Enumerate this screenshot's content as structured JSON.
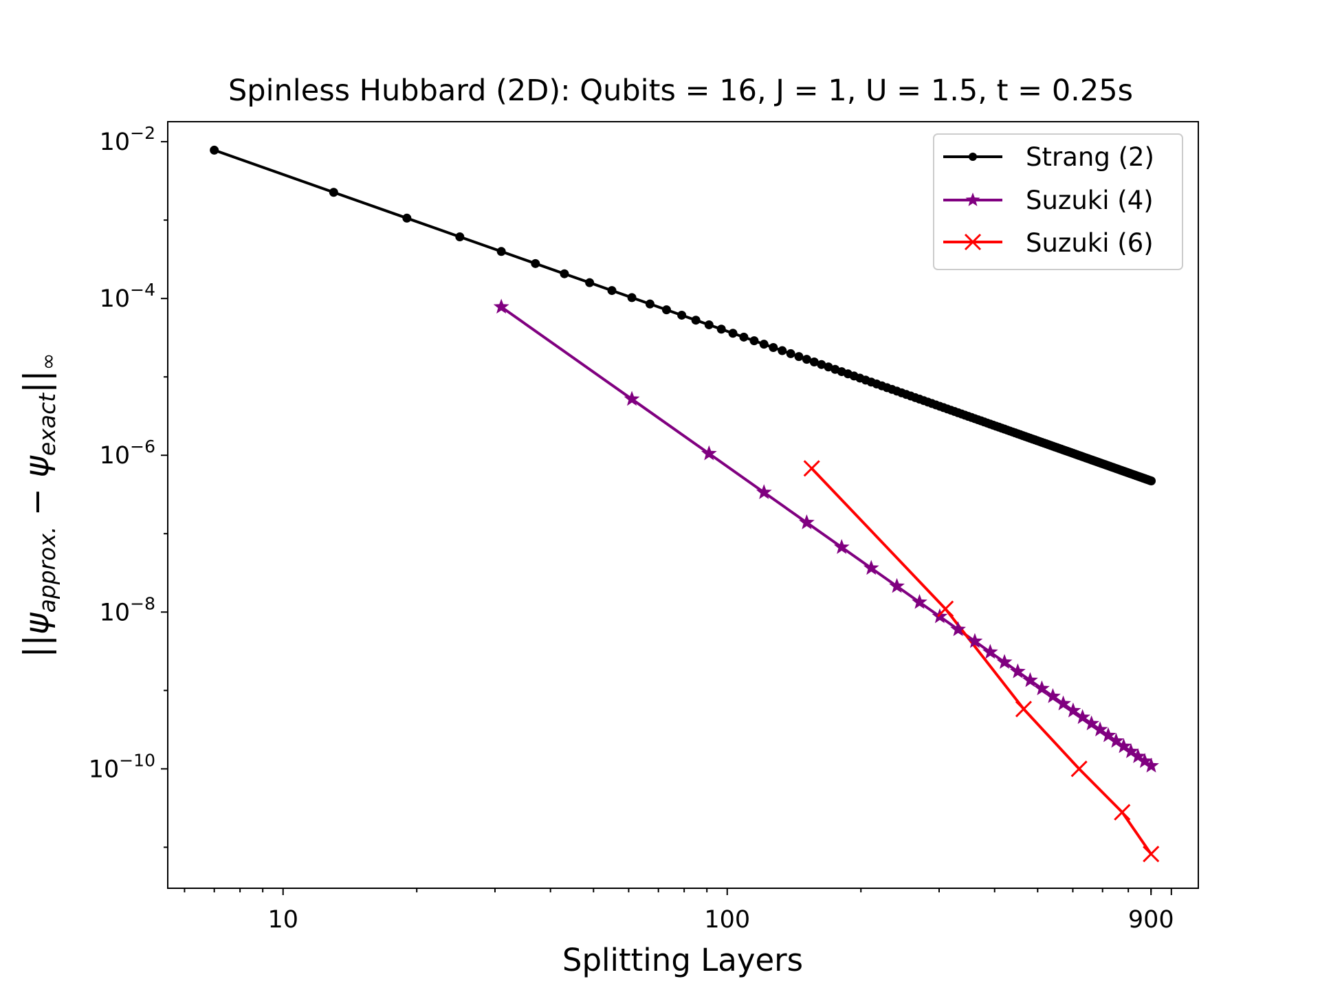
{
  "chart_data": {
    "type": "line",
    "title": "Spinless Hubbard (2D): Qubits = 16, J = 1, U = 1.5, t = 0.25s",
    "xlabel": "Splitting Layers",
    "ylabel": "||ψ_approx. − ψ_exact||_∞",
    "xscale": "log",
    "yscale": "log",
    "xlim": [
      5.5,
      1150
    ],
    "ylim": [
      3e-12,
      0.018
    ],
    "xticks": [
      {
        "value": 10,
        "label": "10"
      },
      {
        "value": 100,
        "label": "100"
      },
      {
        "value": 900,
        "label": "900"
      }
    ],
    "yticks": [
      {
        "value": 0.01,
        "label": "10^-2",
        "base": "10",
        "exp": "−2"
      },
      {
        "value": 0.0001,
        "label": "10^-4",
        "base": "10",
        "exp": "−4"
      },
      {
        "value": 1e-06,
        "label": "10^-6",
        "base": "10",
        "exp": "−6"
      },
      {
        "value": 1e-08,
        "label": "10^-8",
        "base": "10",
        "exp": "−8"
      },
      {
        "value": 1e-10,
        "label": "10^-10",
        "base": "10",
        "exp": "−10"
      }
    ],
    "grid": false,
    "legend_position": "top-right",
    "series": [
      {
        "name": "Strang (2)",
        "color": "#000000",
        "marker": "circle",
        "x_start": 7,
        "x_step": 6,
        "count": 150,
        "y_at_start": 0.0078,
        "slope": -2
      },
      {
        "name": "Suzuki (4)",
        "color": "#800080",
        "marker": "star",
        "x_start": 31,
        "x_step": 30,
        "count": 30,
        "y_at_start": 7.8e-05,
        "slope": -4
      },
      {
        "name": "Suzuki (6)",
        "color": "#ff0000",
        "marker": "x",
        "x": [
          155,
          310,
          465,
          620,
          775,
          900
        ],
        "y": [
          6.8e-07,
          1.1e-08,
          5.8e-10,
          1e-10,
          2.8e-11,
          8.2e-12
        ]
      }
    ]
  }
}
